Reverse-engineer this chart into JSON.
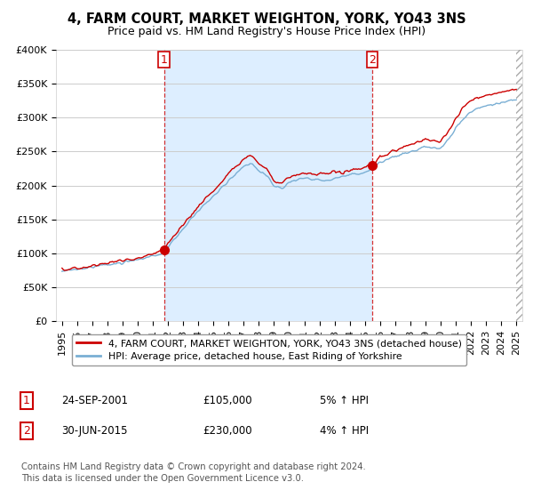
{
  "title": "4, FARM COURT, MARKET WEIGHTON, YORK, YO43 3NS",
  "subtitle": "Price paid vs. HM Land Registry's House Price Index (HPI)",
  "ylim": [
    0,
    400000
  ],
  "yticks": [
    0,
    50000,
    100000,
    150000,
    200000,
    250000,
    300000,
    350000,
    400000
  ],
  "ytick_labels": [
    "£0",
    "£50K",
    "£100K",
    "£150K",
    "£200K",
    "£250K",
    "£300K",
    "£350K",
    "£400K"
  ],
  "xlim_start": 1994.6,
  "xlim_end": 2025.4,
  "xlabel_years": [
    1995,
    1996,
    1997,
    1998,
    1999,
    2000,
    2001,
    2002,
    2003,
    2004,
    2005,
    2006,
    2007,
    2008,
    2009,
    2010,
    2011,
    2012,
    2013,
    2014,
    2015,
    2016,
    2017,
    2018,
    2019,
    2020,
    2021,
    2022,
    2023,
    2024,
    2025
  ],
  "red_line_color": "#cc0000",
  "blue_line_color": "#7aafd4",
  "shade_color": "#ddeeff",
  "marker1_x": 2001.73,
  "marker1_y": 105000,
  "marker2_x": 2015.5,
  "marker2_y": 230000,
  "vline1_x": 2001.73,
  "vline2_x": 2015.5,
  "legend_label_red": "4, FARM COURT, MARKET WEIGHTON, YORK, YO43 3NS (detached house)",
  "legend_label_blue": "HPI: Average price, detached house, East Riding of Yorkshire",
  "table_row1": [
    "1",
    "24-SEP-2001",
    "£105,000",
    "5% ↑ HPI"
  ],
  "table_row2": [
    "2",
    "30-JUN-2015",
    "£230,000",
    "4% ↑ HPI"
  ],
  "footer": "Contains HM Land Registry data © Crown copyright and database right 2024.\nThis data is licensed under the Open Government Licence v3.0.",
  "bg_color": "#ffffff",
  "grid_color": "#cccccc",
  "title_fontsize": 10.5,
  "subtitle_fontsize": 9,
  "axis_fontsize": 8
}
